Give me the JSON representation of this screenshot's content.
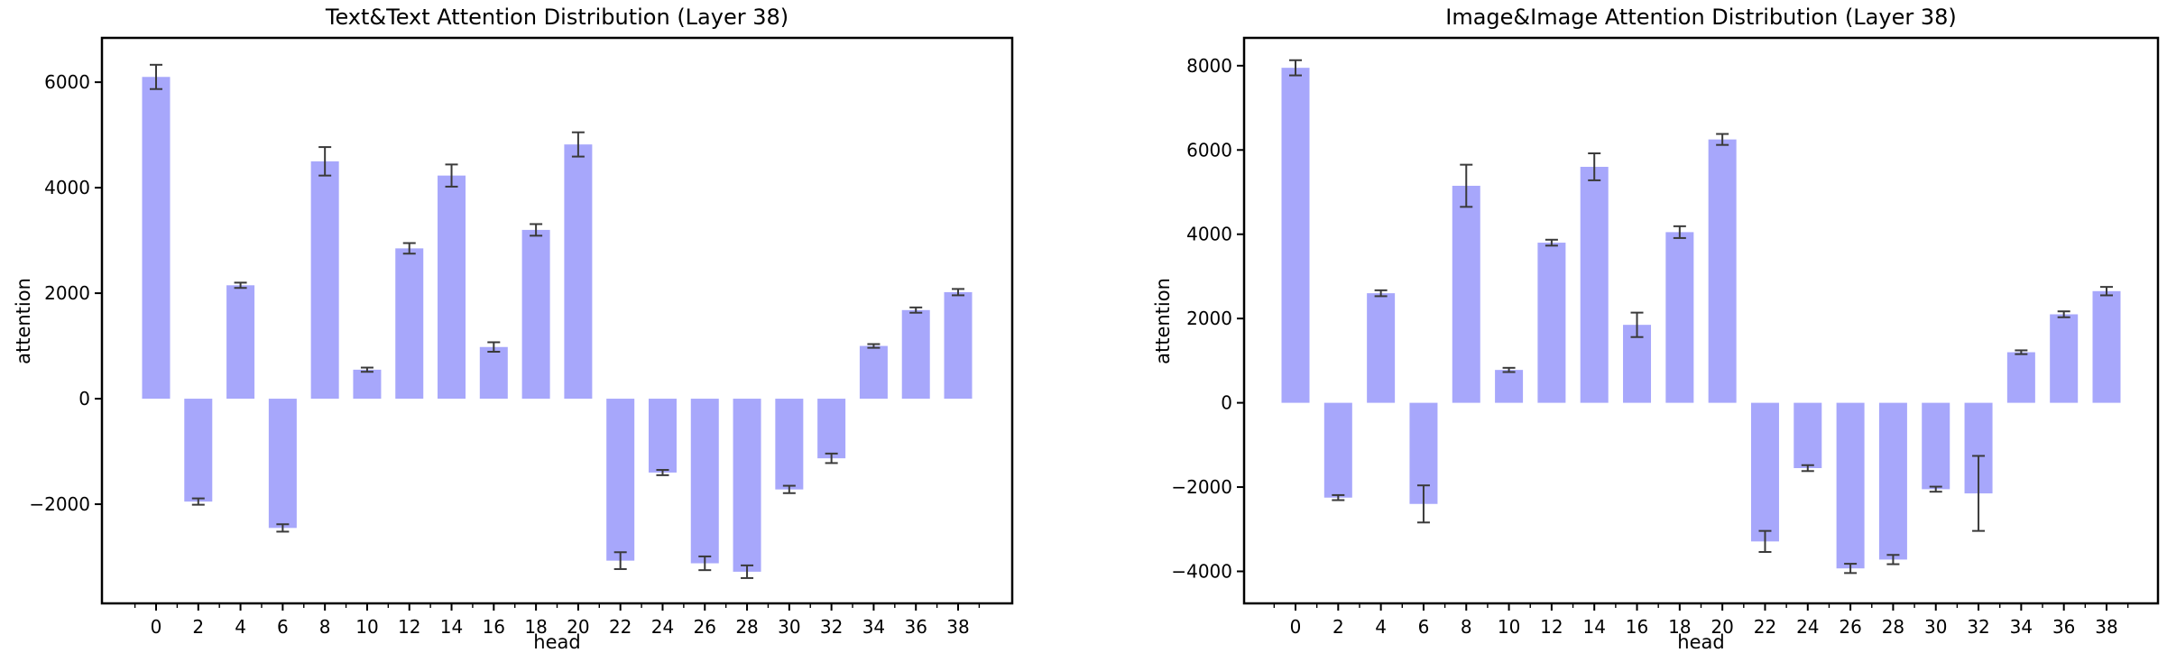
{
  "page": {
    "background": "#ffffff"
  },
  "chart_data": [
    {
      "type": "bar",
      "title": "Text&Text Attention Distribution (Layer 38)",
      "xlabel": "head",
      "ylabel": "attention",
      "categories": [
        0,
        2,
        4,
        6,
        8,
        10,
        12,
        14,
        16,
        18,
        20,
        22,
        24,
        26,
        28,
        30,
        32,
        34,
        36,
        38
      ],
      "values": [
        6100,
        -1950,
        2150,
        -2450,
        4500,
        550,
        2850,
        4230,
        980,
        3200,
        4820,
        -3070,
        -1400,
        -3120,
        -3280,
        -1720,
        -1130,
        1000,
        1680,
        2020
      ],
      "errors": [
        230,
        60,
        50,
        70,
        270,
        40,
        100,
        210,
        90,
        110,
        230,
        160,
        50,
        130,
        120,
        70,
        90,
        35,
        50,
        60
      ],
      "yticks": [
        -2000,
        0,
        2000,
        4000,
        6000
      ],
      "ylim": [
        -3880,
        6840
      ],
      "bar_color": "#a7a7fb",
      "error_color": "#3a3a3a",
      "grid": false,
      "legend": "none"
    },
    {
      "type": "bar",
      "title": "Image&Image Attention Distribution (Layer 38)",
      "xlabel": "head",
      "ylabel": "attention",
      "categories": [
        0,
        2,
        4,
        6,
        8,
        10,
        12,
        14,
        16,
        18,
        20,
        22,
        24,
        26,
        28,
        30,
        32,
        34,
        36,
        38
      ],
      "values": [
        7950,
        -2250,
        2600,
        -2400,
        5150,
        780,
        3800,
        5600,
        1850,
        4050,
        6250,
        -3290,
        -1550,
        -3930,
        -3720,
        -2050,
        -2150,
        1200,
        2100,
        2650
      ],
      "errors": [
        180,
        60,
        70,
        440,
        500,
        50,
        70,
        320,
        290,
        140,
        130,
        250,
        70,
        110,
        110,
        60,
        890,
        45,
        70,
        100
      ],
      "yticks": [
        -4000,
        -2000,
        0,
        2000,
        4000,
        6000,
        8000
      ],
      "ylim": [
        -4760,
        8660
      ],
      "bar_color": "#a7a7fb",
      "error_color": "#3a3a3a",
      "grid": false,
      "legend": "none"
    }
  ]
}
